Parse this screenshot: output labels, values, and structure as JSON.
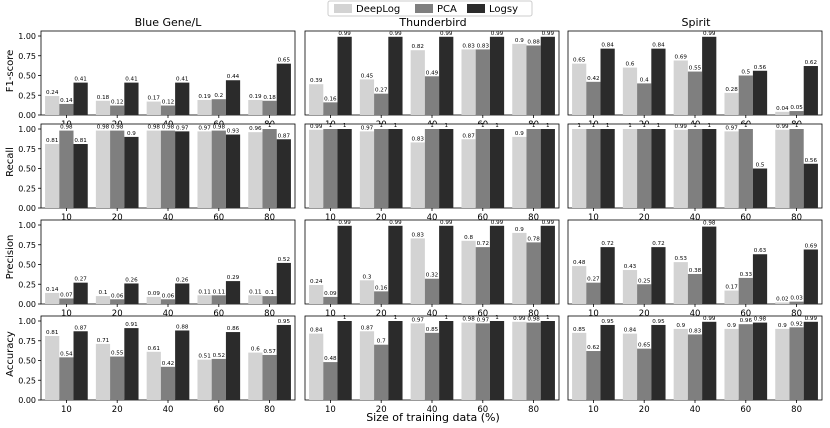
{
  "legend": [
    {
      "name": "DeepLog",
      "color": "#d3d3d3"
    },
    {
      "name": "PCA",
      "color": "#7f7f7f"
    },
    {
      "name": "Logsy",
      "color": "#2b2b2b"
    }
  ],
  "xlabel": "Size of training data (%)",
  "columns": [
    "Blue Gene/L",
    "Thunderbird",
    "Spirit"
  ],
  "rows": [
    "F1-score",
    "Recall",
    "Precision",
    "Accuracy"
  ],
  "ylim": [
    0,
    1.0
  ],
  "yticks": [
    "0.00",
    "0.25",
    "0.50",
    "0.75",
    "1.00"
  ],
  "chart_data": {
    "type": "bar",
    "categories": [
      "10",
      "20",
      "40",
      "60",
      "80"
    ],
    "panels": [
      {
        "dataset": "Blue Gene/L",
        "metric": "F1-score",
        "series": [
          {
            "name": "DeepLog",
            "values": [
              0.24,
              0.18,
              0.17,
              0.19,
              0.19
            ]
          },
          {
            "name": "PCA",
            "values": [
              0.14,
              0.12,
              0.12,
              0.2,
              0.18
            ]
          },
          {
            "name": "Logsy",
            "values": [
              0.41,
              0.41,
              0.41,
              0.44,
              0.65
            ]
          }
        ]
      },
      {
        "dataset": "Thunderbird",
        "metric": "F1-score",
        "series": [
          {
            "name": "DeepLog",
            "values": [
              0.39,
              0.45,
              0.82,
              0.83,
              0.9
            ]
          },
          {
            "name": "PCA",
            "values": [
              0.16,
              0.27,
              0.49,
              0.83,
              0.88
            ]
          },
          {
            "name": "Logsy",
            "values": [
              0.99,
              0.99,
              0.99,
              0.99,
              0.99
            ]
          }
        ]
      },
      {
        "dataset": "Spirit",
        "metric": "F1-score",
        "series": [
          {
            "name": "DeepLog",
            "values": [
              0.65,
              0.6,
              0.69,
              0.28,
              0.04
            ]
          },
          {
            "name": "PCA",
            "values": [
              0.42,
              0.4,
              0.55,
              0.5,
              0.05
            ]
          },
          {
            "name": "Logsy",
            "values": [
              0.84,
              0.84,
              0.99,
              0.56,
              0.62
            ]
          }
        ]
      },
      {
        "dataset": "Blue Gene/L",
        "metric": "Recall",
        "series": [
          {
            "name": "DeepLog",
            "values": [
              0.81,
              0.98,
              0.98,
              0.97,
              0.96
            ]
          },
          {
            "name": "PCA",
            "values": [
              0.98,
              0.98,
              0.98,
              0.98,
              1.0
            ]
          },
          {
            "name": "Logsy",
            "values": [
              0.81,
              0.9,
              0.97,
              0.93,
              0.87
            ]
          }
        ]
      },
      {
        "dataset": "Thunderbird",
        "metric": "Recall",
        "series": [
          {
            "name": "DeepLog",
            "values": [
              0.99,
              0.97,
              0.83,
              0.87,
              0.9
            ]
          },
          {
            "name": "PCA",
            "values": [
              1.0,
              1.0,
              1.0,
              1.0,
              1.0
            ]
          },
          {
            "name": "Logsy",
            "values": [
              1.0,
              1.0,
              1.0,
              1.0,
              1.0
            ]
          }
        ]
      },
      {
        "dataset": "Spirit",
        "metric": "Recall",
        "series": [
          {
            "name": "DeepLog",
            "values": [
              1.0,
              1.0,
              0.99,
              0.97,
              0.99
            ]
          },
          {
            "name": "PCA",
            "values": [
              1.0,
              1.0,
              1.0,
              1.0,
              1.0
            ]
          },
          {
            "name": "Logsy",
            "values": [
              1.0,
              1.0,
              1.0,
              0.5,
              0.56
            ]
          }
        ]
      },
      {
        "dataset": "Blue Gene/L",
        "metric": "Precision",
        "series": [
          {
            "name": "DeepLog",
            "values": [
              0.14,
              0.1,
              0.09,
              0.11,
              0.11
            ]
          },
          {
            "name": "PCA",
            "values": [
              0.07,
              0.06,
              0.06,
              0.11,
              0.1
            ]
          },
          {
            "name": "Logsy",
            "values": [
              0.27,
              0.26,
              0.26,
              0.29,
              0.52
            ]
          }
        ]
      },
      {
        "dataset": "Thunderbird",
        "metric": "Precision",
        "series": [
          {
            "name": "DeepLog",
            "values": [
              0.24,
              0.3,
              0.83,
              0.8,
              0.9
            ]
          },
          {
            "name": "PCA",
            "values": [
              0.09,
              0.16,
              0.32,
              0.72,
              0.78
            ]
          },
          {
            "name": "Logsy",
            "values": [
              0.99,
              0.99,
              0.99,
              0.99,
              0.99
            ]
          }
        ]
      },
      {
        "dataset": "Spirit",
        "metric": "Precision",
        "series": [
          {
            "name": "DeepLog",
            "values": [
              0.48,
              0.43,
              0.53,
              0.17,
              0.02
            ]
          },
          {
            "name": "PCA",
            "values": [
              0.27,
              0.25,
              0.38,
              0.33,
              0.03
            ]
          },
          {
            "name": "Logsy",
            "values": [
              0.72,
              0.72,
              0.98,
              0.63,
              0.69
            ]
          }
        ]
      },
      {
        "dataset": "Blue Gene/L",
        "metric": "Accuracy",
        "series": [
          {
            "name": "DeepLog",
            "values": [
              0.81,
              0.71,
              0.61,
              0.51,
              0.6
            ]
          },
          {
            "name": "PCA",
            "values": [
              0.54,
              0.55,
              0.42,
              0.52,
              0.57
            ]
          },
          {
            "name": "Logsy",
            "values": [
              0.87,
              0.91,
              0.88,
              0.86,
              0.95
            ]
          }
        ]
      },
      {
        "dataset": "Thunderbird",
        "metric": "Accuracy",
        "series": [
          {
            "name": "DeepLog",
            "values": [
              0.84,
              0.87,
              0.97,
              0.98,
              0.99
            ]
          },
          {
            "name": "PCA",
            "values": [
              0.48,
              0.7,
              0.85,
              0.97,
              0.98
            ]
          },
          {
            "name": "Logsy",
            "values": [
              1.0,
              1.0,
              1.0,
              1.0,
              1.0
            ]
          }
        ]
      },
      {
        "dataset": "Spirit",
        "metric": "Accuracy",
        "series": [
          {
            "name": "DeepLog",
            "values": [
              0.85,
              0.84,
              0.9,
              0.9,
              0.9
            ]
          },
          {
            "name": "PCA",
            "values": [
              0.62,
              0.65,
              0.83,
              0.96,
              0.92
            ]
          },
          {
            "name": "Logsy",
            "values": [
              0.95,
              0.95,
              0.99,
              0.98,
              0.99
            ]
          }
        ]
      }
    ]
  }
}
